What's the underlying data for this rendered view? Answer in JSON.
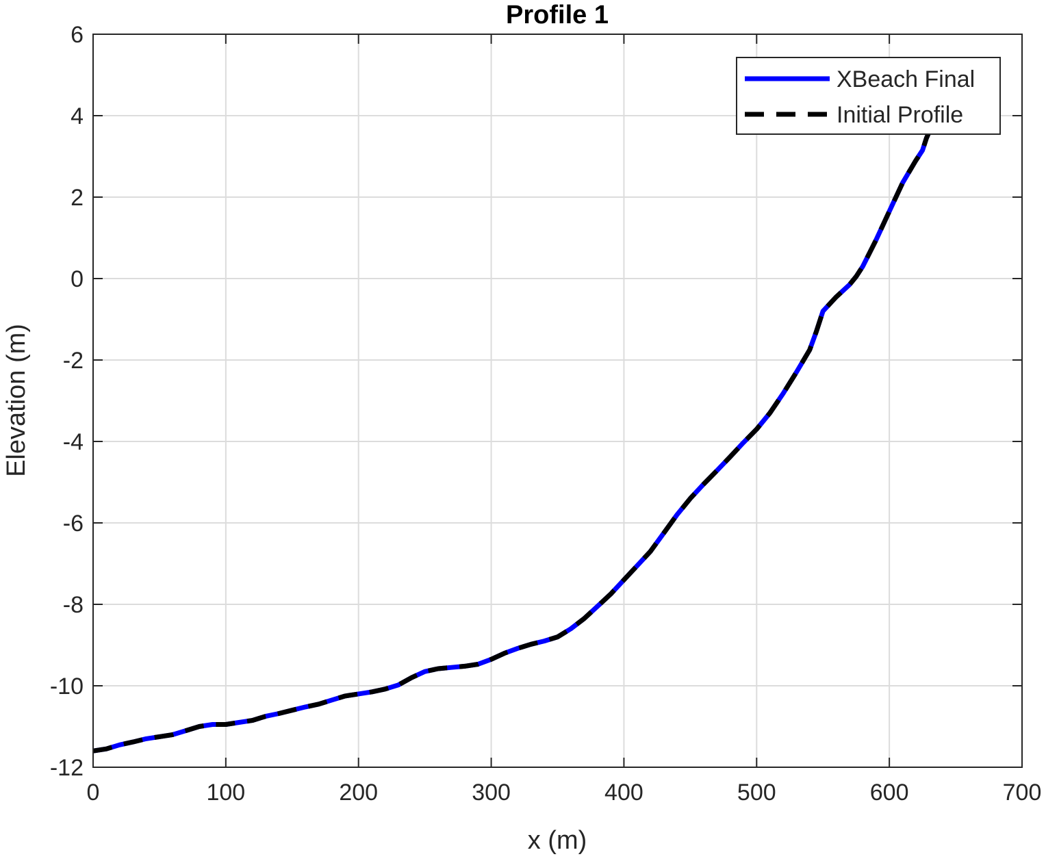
{
  "chart_data": {
    "type": "line",
    "title": "Profile 1",
    "xlabel": "x (m)",
    "ylabel": "Elevation (m)",
    "xlim": [
      0,
      700
    ],
    "ylim": [
      -12,
      6
    ],
    "xticks": [
      0,
      100,
      200,
      300,
      400,
      500,
      600,
      700
    ],
    "yticks": [
      -12,
      -10,
      -8,
      -6,
      -4,
      -2,
      0,
      2,
      4,
      6
    ],
    "grid": true,
    "legend_position": "top-right",
    "series": [
      {
        "name": "XBeach Final",
        "color": "#0000ff",
        "style": "solid",
        "x": [
          0,
          10,
          20,
          30,
          40,
          50,
          60,
          70,
          80,
          90,
          100,
          110,
          120,
          130,
          140,
          150,
          160,
          170,
          180,
          190,
          200,
          210,
          220,
          230,
          240,
          250,
          260,
          270,
          280,
          290,
          300,
          310,
          320,
          330,
          340,
          350,
          360,
          370,
          380,
          390,
          400,
          410,
          420,
          430,
          440,
          450,
          460,
          470,
          480,
          490,
          500,
          510,
          520,
          530,
          540,
          545,
          550,
          560,
          570,
          575,
          580,
          590,
          600,
          610,
          620,
          625,
          628,
          632
        ],
        "y": [
          -11.6,
          -11.55,
          -11.45,
          -11.38,
          -11.3,
          -11.25,
          -11.2,
          -11.1,
          -11.0,
          -10.95,
          -10.95,
          -10.9,
          -10.85,
          -10.75,
          -10.68,
          -10.6,
          -10.52,
          -10.45,
          -10.35,
          -10.25,
          -10.2,
          -10.15,
          -10.08,
          -9.98,
          -9.8,
          -9.65,
          -9.58,
          -9.55,
          -9.52,
          -9.47,
          -9.35,
          -9.2,
          -9.08,
          -8.98,
          -8.9,
          -8.8,
          -8.6,
          -8.35,
          -8.05,
          -7.75,
          -7.4,
          -7.05,
          -6.7,
          -6.25,
          -5.8,
          -5.4,
          -5.05,
          -4.72,
          -4.38,
          -4.03,
          -3.7,
          -3.3,
          -2.82,
          -2.3,
          -1.75,
          -1.3,
          -0.8,
          -0.45,
          -0.15,
          0.05,
          0.3,
          0.95,
          1.65,
          2.35,
          2.9,
          3.15,
          3.45,
          3.75
        ]
      },
      {
        "name": "Initial Profile",
        "color": "#000000",
        "style": "dashed",
        "x": [
          0,
          10,
          20,
          30,
          40,
          50,
          60,
          70,
          80,
          90,
          100,
          110,
          120,
          130,
          140,
          150,
          160,
          170,
          180,
          190,
          200,
          210,
          220,
          230,
          240,
          250,
          260,
          270,
          280,
          290,
          300,
          310,
          320,
          330,
          340,
          350,
          360,
          370,
          380,
          390,
          400,
          410,
          420,
          430,
          440,
          450,
          460,
          470,
          480,
          490,
          500,
          510,
          520,
          530,
          540,
          545,
          550,
          560,
          570,
          575,
          580,
          590,
          600,
          610,
          620,
          625,
          628,
          632
        ],
        "y": [
          -11.6,
          -11.55,
          -11.45,
          -11.38,
          -11.3,
          -11.25,
          -11.2,
          -11.1,
          -11.0,
          -10.95,
          -10.95,
          -10.9,
          -10.85,
          -10.75,
          -10.68,
          -10.6,
          -10.52,
          -10.45,
          -10.35,
          -10.25,
          -10.2,
          -10.15,
          -10.08,
          -9.98,
          -9.8,
          -9.65,
          -9.58,
          -9.55,
          -9.52,
          -9.47,
          -9.35,
          -9.2,
          -9.08,
          -8.98,
          -8.9,
          -8.8,
          -8.6,
          -8.35,
          -8.05,
          -7.75,
          -7.4,
          -7.05,
          -6.7,
          -6.25,
          -5.8,
          -5.4,
          -5.05,
          -4.72,
          -4.38,
          -4.03,
          -3.7,
          -3.3,
          -2.82,
          -2.3,
          -1.75,
          -1.3,
          -0.8,
          -0.45,
          -0.15,
          0.05,
          0.3,
          0.95,
          1.65,
          2.35,
          2.9,
          3.15,
          3.45,
          3.75
        ]
      }
    ]
  }
}
